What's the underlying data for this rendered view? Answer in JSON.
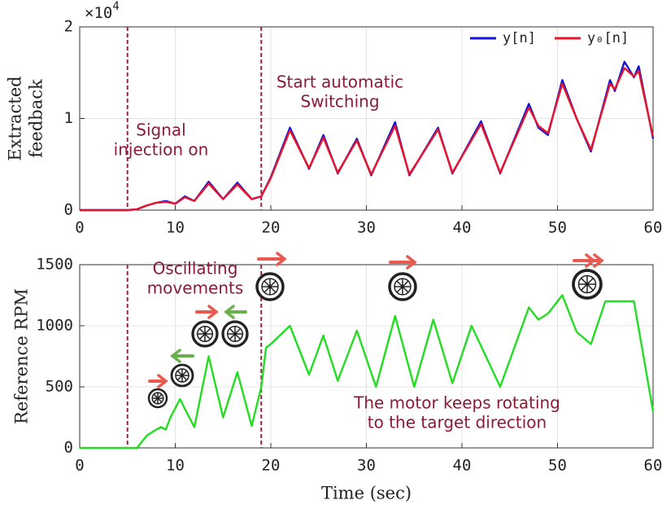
{
  "chart_data": [
    {
      "type": "line",
      "y_offset_label": [
        "×10",
        "4"
      ],
      "ylabel": [
        "Extracted",
        "feedback"
      ],
      "x": [
        0,
        5,
        6,
        7,
        8,
        9,
        10,
        11,
        12,
        13.5,
        15,
        16.5,
        18,
        19,
        20,
        22,
        24,
        25.5,
        27,
        29,
        30.5,
        33,
        34.5,
        37.5,
        39,
        42,
        44,
        47,
        48,
        49,
        50.5,
        52,
        53.5,
        55.5,
        56,
        57,
        58,
        58.5,
        60
      ],
      "series": [
        {
          "name": "y[n]",
          "color": "#1414d8",
          "values": [
            0,
            0,
            0.01,
            0.05,
            0.08,
            0.1,
            0.07,
            0.15,
            0.1,
            0.31,
            0.12,
            0.3,
            0.12,
            0.15,
            0.36,
            0.9,
            0.45,
            0.82,
            0.4,
            0.78,
            0.38,
            0.96,
            0.38,
            0.9,
            0.4,
            0.97,
            0.4,
            1.16,
            0.9,
            0.82,
            1.42,
            1.0,
            0.64,
            1.42,
            1.3,
            1.62,
            1.45,
            1.57,
            0.78
          ]
        },
        {
          "name": "y₀[n]",
          "color": "#e8142c",
          "values": [
            0,
            0,
            0.01,
            0.05,
            0.08,
            0.09,
            0.07,
            0.14,
            0.1,
            0.29,
            0.12,
            0.28,
            0.12,
            0.15,
            0.35,
            0.87,
            0.46,
            0.79,
            0.41,
            0.76,
            0.39,
            0.92,
            0.39,
            0.88,
            0.41,
            0.94,
            0.41,
            1.12,
            0.92,
            0.84,
            1.38,
            1.0,
            0.66,
            1.38,
            1.32,
            1.55,
            1.46,
            1.52,
            0.8
          ]
        }
      ],
      "xlim": [
        0,
        60
      ],
      "xticks": [
        0,
        10,
        20,
        30,
        40,
        50,
        60
      ],
      "ylim": [
        0,
        2
      ],
      "yticks": [
        0,
        1,
        2
      ],
      "grid": true,
      "legend": "upper right",
      "vlines": [
        5,
        19
      ],
      "vline_color": "#a0204a",
      "annotations": [
        [
          "Signal",
          "injection on"
        ],
        [
          "Start automatic",
          "Switching"
        ]
      ]
    },
    {
      "type": "line",
      "ylabel": [
        "Reference RPM"
      ],
      "xlabel": "Time (sec)",
      "x": [
        0,
        5,
        6,
        6.5,
        7,
        8,
        8.5,
        9,
        9.5,
        10.5,
        11,
        12,
        13.5,
        15,
        16.5,
        18,
        19,
        19.5,
        20,
        22,
        24,
        25.5,
        27,
        29,
        31,
        33,
        35,
        37,
        39,
        41,
        44,
        47,
        48,
        49,
        50.5,
        52,
        53.5,
        55,
        58,
        60
      ],
      "series": [
        {
          "name": "Reference RPM",
          "color": "#22dd22",
          "values": [
            0,
            0,
            0,
            50,
            100,
            150,
            170,
            150,
            250,
            400,
            320,
            170,
            750,
            250,
            620,
            180,
            500,
            820,
            850,
            1000,
            600,
            920,
            550,
            960,
            500,
            1080,
            500,
            1050,
            530,
            1000,
            500,
            1150,
            1050,
            1100,
            1250,
            950,
            850,
            1200,
            1200,
            300
          ]
        }
      ],
      "xlim": [
        0,
        60
      ],
      "xticks": [
        0,
        10,
        20,
        30,
        40,
        50,
        60
      ],
      "ylim": [
        0,
        1500
      ],
      "yticks": [
        0,
        500,
        1000,
        1500
      ],
      "grid": true,
      "vlines": [
        5,
        19
      ],
      "vline_color": "#a0204a",
      "annotations": [
        [
          "Oscillating",
          "movements"
        ],
        [
          "The motor keeps rotating",
          "to the target direction"
        ]
      ]
    }
  ]
}
